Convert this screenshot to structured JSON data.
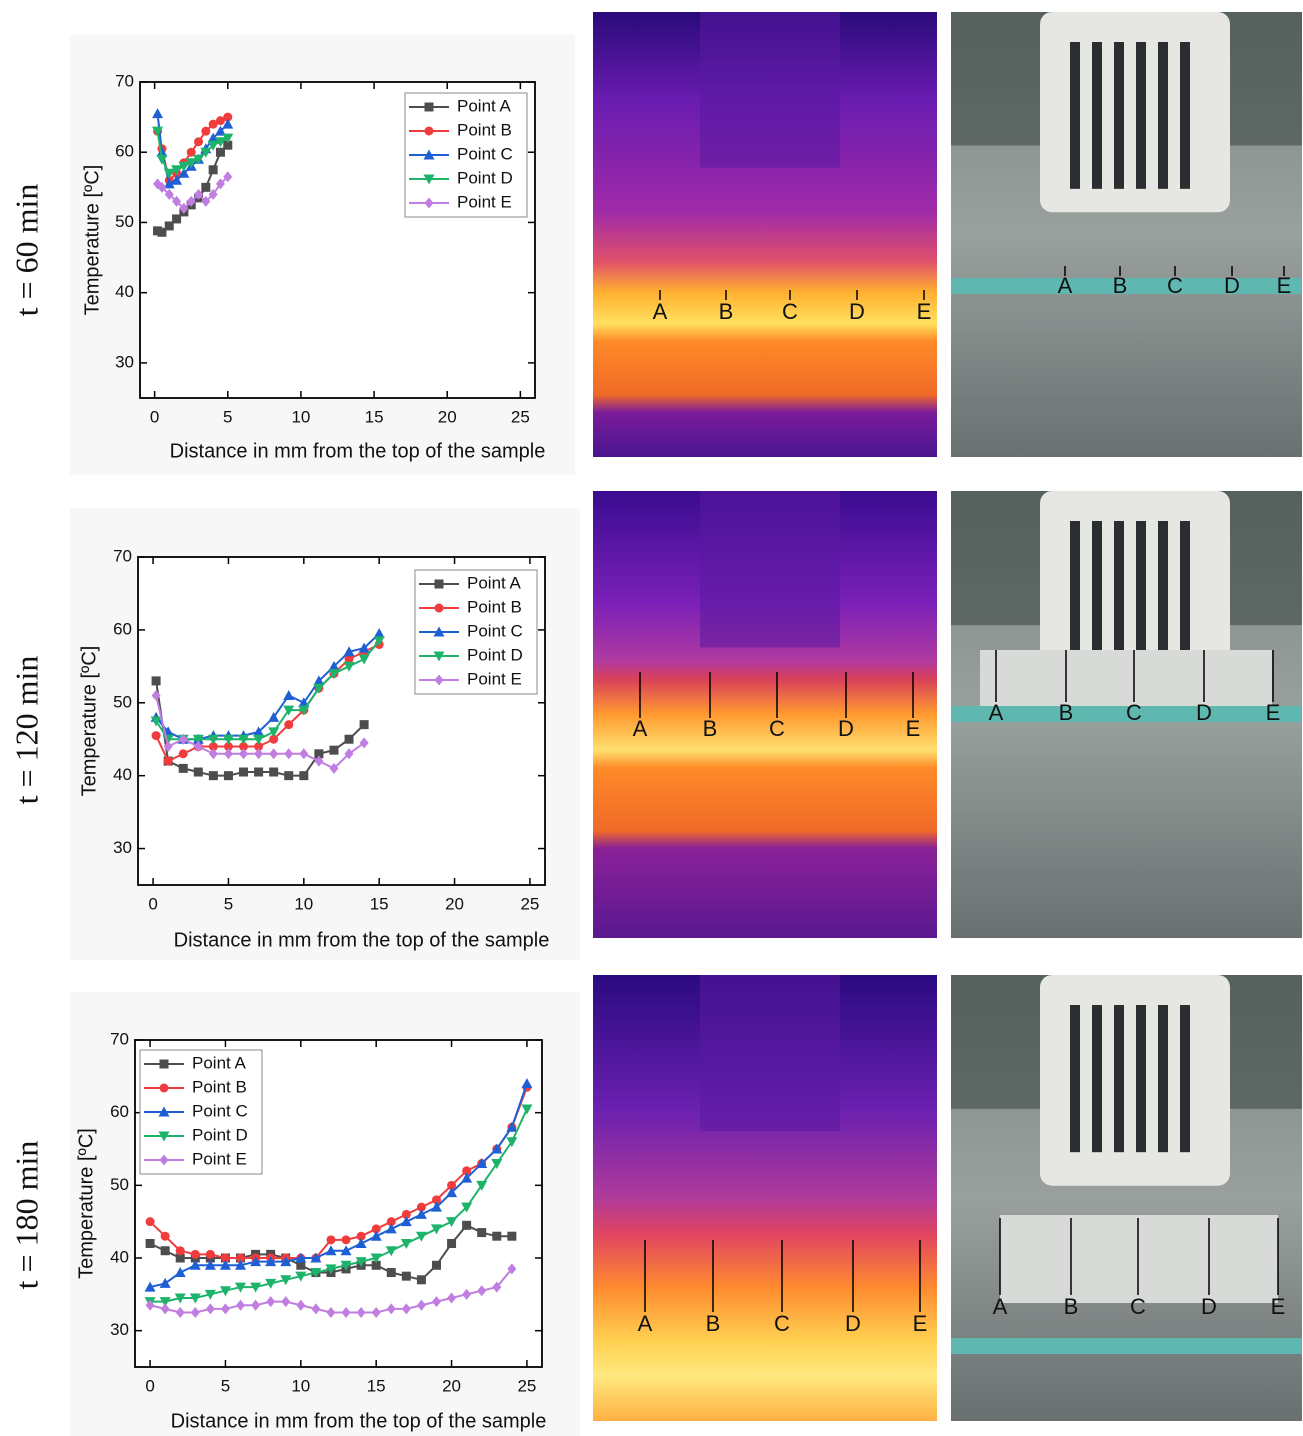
{
  "chart_data": [
    {
      "type": "line",
      "xlabel": "Distance in mm from the top of the sample",
      "ylabel": "Temperature [ºC]",
      "xlim": [
        -1,
        26
      ],
      "xticks": [
        0,
        5,
        10,
        15,
        20,
        25
      ],
      "ylim": [
        25,
        70
      ],
      "yticks": [
        30,
        40,
        50,
        60,
        70
      ],
      "legend": "upper right",
      "x": [
        0.2,
        0.5,
        1,
        1.5,
        2,
        2.5,
        3,
        3.5,
        4,
        4.5,
        5
      ],
      "series": [
        {
          "name": "Point A",
          "color": "#4d4d4d",
          "marker": "square",
          "values": [
            48.8,
            48.6,
            49.5,
            50.5,
            51.5,
            52.5,
            53.5,
            55,
            57.5,
            60,
            61
          ]
        },
        {
          "name": "Point B",
          "color": "#f03c3c",
          "marker": "circle",
          "values": [
            63,
            60.5,
            56,
            57,
            58.5,
            60,
            61.5,
            63,
            64,
            64.5,
            65
          ]
        },
        {
          "name": "Point C",
          "color": "#1f5fd4",
          "marker": "triangle-up",
          "values": [
            65.5,
            60,
            55.5,
            56,
            57,
            58,
            59,
            60.5,
            62,
            63,
            64
          ]
        },
        {
          "name": "Point D",
          "color": "#1eb36a",
          "marker": "triangle-down",
          "values": [
            63,
            59,
            57,
            57.5,
            58,
            58.5,
            59,
            60,
            61,
            61.5,
            62
          ]
        },
        {
          "name": "Point E",
          "color": "#c07ee0",
          "marker": "diamond",
          "values": [
            55.5,
            55,
            54,
            53,
            52,
            53,
            54,
            53,
            54,
            55.5,
            56.5
          ]
        }
      ]
    },
    {
      "type": "line",
      "xlabel": "Distance in mm from the top of the sample",
      "ylabel": "Temperature [ºC]",
      "xlim": [
        -1,
        26
      ],
      "xticks": [
        0,
        5,
        10,
        15,
        20,
        25
      ],
      "ylim": [
        25,
        70
      ],
      "yticks": [
        30,
        40,
        50,
        60,
        70
      ],
      "legend": "upper right",
      "x": [
        0.2,
        1,
        2,
        3,
        4,
        5,
        6,
        7,
        8,
        9,
        10,
        11,
        12,
        13,
        14,
        15
      ],
      "series": [
        {
          "name": "Point A",
          "color": "#4d4d4d",
          "marker": "square",
          "values": [
            53,
            42,
            41,
            40.5,
            40,
            40,
            40.5,
            40.5,
            40.5,
            40,
            40,
            43,
            43.5,
            45,
            47,
            null
          ]
        },
        {
          "name": "Point B",
          "color": "#f03c3c",
          "marker": "circle",
          "values": [
            45.5,
            42,
            43,
            44,
            44,
            44,
            44,
            44,
            45,
            47,
            49,
            52,
            54,
            56,
            57,
            58
          ]
        },
        {
          "name": "Point C",
          "color": "#1f5fd4",
          "marker": "triangle-up",
          "values": [
            48,
            46,
            45,
            45,
            45.5,
            45.5,
            45.5,
            46,
            48,
            51,
            50,
            53,
            55,
            57,
            57.5,
            59.5
          ]
        },
        {
          "name": "Point D",
          "color": "#1eb36a",
          "marker": "triangle-down",
          "values": [
            47.5,
            45,
            45,
            45,
            45,
            45,
            45,
            45,
            46,
            49,
            49,
            52,
            54,
            55,
            56,
            58.5
          ]
        },
        {
          "name": "Point E",
          "color": "#c07ee0",
          "marker": "diamond",
          "values": [
            51,
            44,
            45,
            44,
            43,
            43,
            43,
            43,
            43,
            43,
            43,
            42,
            41,
            43,
            44.5,
            null
          ]
        }
      ]
    },
    {
      "type": "line",
      "xlabel": "Distance in mm from the top of the sample",
      "ylabel": "Temperature [ºC]",
      "xlim": [
        -1,
        26
      ],
      "xticks": [
        0,
        5,
        10,
        15,
        20,
        25
      ],
      "ylim": [
        25,
        70
      ],
      "yticks": [
        30,
        40,
        50,
        60,
        70
      ],
      "legend": "upper left",
      "x": [
        0,
        1,
        2,
        3,
        4,
        5,
        6,
        7,
        8,
        9,
        10,
        11,
        12,
        13,
        14,
        15,
        16,
        17,
        18,
        19,
        20,
        21,
        22,
        23,
        24,
        25
      ],
      "series": [
        {
          "name": "Point A",
          "color": "#4d4d4d",
          "marker": "square",
          "values": [
            42,
            41,
            40,
            40,
            40,
            40,
            40,
            40.5,
            40.5,
            40,
            39,
            38,
            38,
            38.5,
            39,
            39,
            38,
            37.5,
            37,
            39,
            42,
            44.5,
            43.5,
            43,
            43,
            null
          ]
        },
        {
          "name": "Point B",
          "color": "#f03c3c",
          "marker": "circle",
          "values": [
            45,
            43,
            41,
            40.5,
            40.5,
            40,
            40,
            40,
            40,
            40,
            40,
            40,
            42.5,
            42.5,
            43,
            44,
            45,
            46,
            47,
            48,
            50,
            52,
            53,
            55,
            58,
            63.5
          ]
        },
        {
          "name": "Point C",
          "color": "#1f5fd4",
          "marker": "triangle-up",
          "values": [
            36,
            36.5,
            38,
            39,
            39,
            39,
            39,
            39.5,
            39.5,
            39.5,
            40,
            40,
            41,
            41,
            42,
            43,
            44,
            45,
            46,
            47,
            49,
            51,
            53,
            55,
            58,
            64
          ]
        },
        {
          "name": "Point D",
          "color": "#1eb36a",
          "marker": "triangle-down",
          "values": [
            34,
            34,
            34.5,
            34.5,
            35,
            35.5,
            36,
            36,
            36.5,
            37,
            37.5,
            38,
            38.5,
            39,
            39.5,
            40,
            41,
            42,
            43,
            44,
            45,
            47,
            50,
            53,
            56,
            60.5
          ]
        },
        {
          "name": "Point E",
          "color": "#c07ee0",
          "marker": "diamond",
          "values": [
            33.5,
            33,
            32.5,
            32.5,
            33,
            33,
            33.5,
            33.5,
            34,
            34,
            33.5,
            33,
            32.5,
            32.5,
            32.5,
            32.5,
            33,
            33,
            33.5,
            34,
            34.5,
            35,
            35.5,
            36,
            38.5,
            null
          ]
        }
      ]
    }
  ],
  "rows": [
    {
      "time": "t = 60 min",
      "thermal_labels": [
        "A",
        "B",
        "C",
        "D",
        "E"
      ],
      "photo_labels": [
        "A",
        "B",
        "C",
        "D",
        "E"
      ]
    },
    {
      "time": "t = 120 min",
      "thermal_labels": [
        "A",
        "B",
        "C",
        "D",
        "E"
      ],
      "photo_labels": [
        "A",
        "B",
        "C",
        "D",
        "E"
      ]
    },
    {
      "time": "t = 180 min",
      "thermal_labels": [
        "A",
        "B",
        "C",
        "D",
        "E"
      ],
      "photo_labels": [
        "A",
        "B",
        "C",
        "D",
        "E"
      ]
    }
  ]
}
